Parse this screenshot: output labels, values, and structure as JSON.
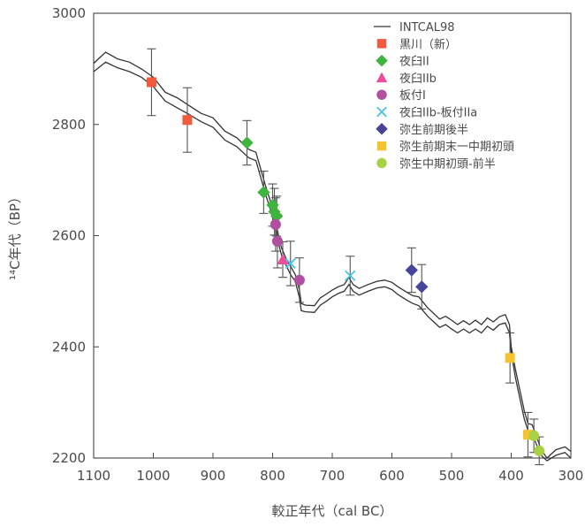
{
  "chart_data": {
    "type": "scatter",
    "xlabel": "較正年代（cal BC）",
    "ylabel": "¹⁴C年代（BP）",
    "xlim": [
      1100,
      300
    ],
    "ylim": [
      2200,
      3000
    ],
    "x_reversed": true,
    "x_ticks": [
      1100,
      1000,
      900,
      800,
      700,
      600,
      500,
      400,
      300
    ],
    "y_ticks": [
      2200,
      2400,
      2600,
      2800,
      3000
    ],
    "legend_position": "top-right",
    "calibration_curve": {
      "name": "INTCAL98",
      "color": "#333333",
      "upper": [
        [
          1100,
          2910
        ],
        [
          1080,
          2930
        ],
        [
          1060,
          2918
        ],
        [
          1040,
          2912
        ],
        [
          1020,
          2900
        ],
        [
          1000,
          2885
        ],
        [
          980,
          2858
        ],
        [
          960,
          2848
        ],
        [
          940,
          2834
        ],
        [
          920,
          2820
        ],
        [
          900,
          2812
        ],
        [
          880,
          2788
        ],
        [
          860,
          2776
        ],
        [
          840,
          2755
        ],
        [
          828,
          2750
        ],
        [
          820,
          2720
        ],
        [
          812,
          2690
        ],
        [
          806,
          2670
        ],
        [
          800,
          2648
        ],
        [
          795,
          2625
        ],
        [
          790,
          2600
        ],
        [
          785,
          2578
        ],
        [
          778,
          2560
        ],
        [
          770,
          2545
        ],
        [
          762,
          2530
        ],
        [
          755,
          2502
        ],
        [
          752,
          2478
        ],
        [
          745,
          2475
        ],
        [
          730,
          2474
        ],
        [
          720,
          2488
        ],
        [
          710,
          2495
        ],
        [
          700,
          2502
        ],
        [
          690,
          2508
        ],
        [
          680,
          2512
        ],
        [
          672,
          2525
        ],
        [
          665,
          2512
        ],
        [
          655,
          2505
        ],
        [
          640,
          2512
        ],
        [
          625,
          2518
        ],
        [
          612,
          2520
        ],
        [
          600,
          2516
        ],
        [
          590,
          2508
        ],
        [
          575,
          2498
        ],
        [
          565,
          2492
        ],
        [
          555,
          2490
        ],
        [
          540,
          2470
        ],
        [
          530,
          2460
        ],
        [
          520,
          2450
        ],
        [
          510,
          2455
        ],
        [
          500,
          2448
        ],
        [
          490,
          2440
        ],
        [
          480,
          2447
        ],
        [
          470,
          2440
        ],
        [
          460,
          2448
        ],
        [
          450,
          2440
        ],
        [
          440,
          2452
        ],
        [
          430,
          2445
        ],
        [
          420,
          2454
        ],
        [
          410,
          2458
        ],
        [
          403,
          2440
        ],
        [
          400,
          2400
        ],
        [
          393,
          2360
        ],
        [
          385,
          2320
        ],
        [
          378,
          2285
        ],
        [
          372,
          2262
        ],
        [
          365,
          2260
        ],
        [
          358,
          2240
        ],
        [
          350,
          2215
        ],
        [
          340,
          2200
        ],
        [
          325,
          2215
        ],
        [
          310,
          2220
        ],
        [
          300,
          2212
        ]
      ],
      "lower": [
        [
          1100,
          2895
        ],
        [
          1080,
          2912
        ],
        [
          1060,
          2902
        ],
        [
          1040,
          2895
        ],
        [
          1020,
          2885
        ],
        [
          1000,
          2868
        ],
        [
          980,
          2842
        ],
        [
          960,
          2830
        ],
        [
          940,
          2818
        ],
        [
          920,
          2805
        ],
        [
          900,
          2795
        ],
        [
          880,
          2772
        ],
        [
          860,
          2760
        ],
        [
          840,
          2740
        ],
        [
          828,
          2735
        ],
        [
          820,
          2705
        ],
        [
          812,
          2675
        ],
        [
          806,
          2655
        ],
        [
          800,
          2632
        ],
        [
          795,
          2610
        ],
        [
          790,
          2585
        ],
        [
          785,
          2565
        ],
        [
          778,
          2548
        ],
        [
          770,
          2530
        ],
        [
          762,
          2518
        ],
        [
          755,
          2488
        ],
        [
          752,
          2465
        ],
        [
          745,
          2463
        ],
        [
          730,
          2462
        ],
        [
          720,
          2475
        ],
        [
          710,
          2482
        ],
        [
          700,
          2490
        ],
        [
          690,
          2496
        ],
        [
          680,
          2500
        ],
        [
          672,
          2512
        ],
        [
          665,
          2500
        ],
        [
          655,
          2493
        ],
        [
          640,
          2500
        ],
        [
          625,
          2506
        ],
        [
          612,
          2508
        ],
        [
          600,
          2503
        ],
        [
          590,
          2494
        ],
        [
          575,
          2484
        ],
        [
          565,
          2478
        ],
        [
          555,
          2474
        ],
        [
          540,
          2455
        ],
        [
          530,
          2445
        ],
        [
          520,
          2435
        ],
        [
          510,
          2440
        ],
        [
          500,
          2432
        ],
        [
          490,
          2425
        ],
        [
          480,
          2432
        ],
        [
          470,
          2425
        ],
        [
          460,
          2432
        ],
        [
          450,
          2425
        ],
        [
          440,
          2437
        ],
        [
          430,
          2430
        ],
        [
          420,
          2440
        ],
        [
          410,
          2443
        ],
        [
          403,
          2425
        ],
        [
          400,
          2390
        ],
        [
          393,
          2345
        ],
        [
          385,
          2305
        ],
        [
          378,
          2270
        ],
        [
          372,
          2250
        ],
        [
          365,
          2245
        ],
        [
          358,
          2225
        ],
        [
          350,
          2205
        ],
        [
          340,
          2195
        ],
        [
          325,
          2205
        ],
        [
          310,
          2210
        ],
        [
          300,
          2200
        ]
      ]
    },
    "series": [
      {
        "name": "黒川（新）",
        "marker": "square",
        "color": "#f15a3a",
        "points": [
          {
            "x": 1003,
            "y": 2876,
            "err": 60
          },
          {
            "x": 943,
            "y": 2808,
            "err": 58
          }
        ]
      },
      {
        "name": "夜臼II",
        "marker": "diamond",
        "color": "#3fb43f",
        "points": [
          {
            "x": 843,
            "y": 2767,
            "err": 40
          },
          {
            "x": 815,
            "y": 2678,
            "err": 38
          },
          {
            "x": 800,
            "y": 2655,
            "err": 38
          },
          {
            "x": 797,
            "y": 2643,
            "err": 42
          },
          {
            "x": 793,
            "y": 2635,
            "err": 36
          }
        ]
      },
      {
        "name": "夜臼IIb",
        "marker": "triangle",
        "color": "#ec4e9c",
        "points": [
          {
            "x": 783,
            "y": 2557,
            "err": 32
          }
        ]
      },
      {
        "name": "板付I",
        "marker": "circle",
        "color": "#b14fa0",
        "points": [
          {
            "x": 795,
            "y": 2620,
            "err": 48
          },
          {
            "x": 792,
            "y": 2590,
            "err": 48
          },
          {
            "x": 755,
            "y": 2520,
            "err": 40
          }
        ]
      },
      {
        "name": "夜臼IIb-板付IIa",
        "marker": "x",
        "color": "#47c4e8",
        "points": [
          {
            "x": 770,
            "y": 2550,
            "err": 40
          },
          {
            "x": 670,
            "y": 2528,
            "err": 35
          }
        ]
      },
      {
        "name": "弥生前期後半",
        "marker": "diamond",
        "color": "#45459a",
        "points": [
          {
            "x": 567,
            "y": 2538,
            "err": 40
          },
          {
            "x": 550,
            "y": 2508,
            "err": 40
          }
        ]
      },
      {
        "name": "弥生前期末一中期初頭",
        "marker": "square",
        "color": "#f5c230",
        "points": [
          {
            "x": 402,
            "y": 2380,
            "err": 45
          },
          {
            "x": 372,
            "y": 2242,
            "err": 40
          }
        ]
      },
      {
        "name": "弥生中期初頭-前半",
        "marker": "circle",
        "color": "#a8d246",
        "points": [
          {
            "x": 362,
            "y": 2240,
            "err": 30
          },
          {
            "x": 353,
            "y": 2213,
            "err": 25
          }
        ]
      }
    ]
  }
}
